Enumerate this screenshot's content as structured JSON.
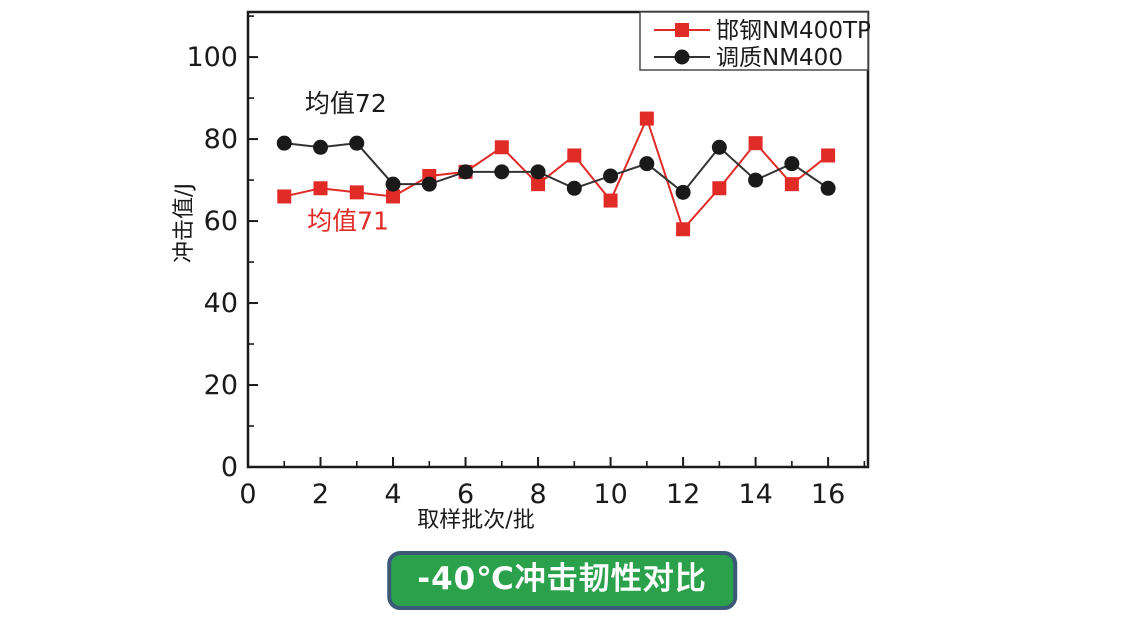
{
  "banner": {
    "label": "-40℃冲击韧性对比",
    "bg_color": "#2ba14b",
    "border_color": "#3b5a78",
    "text_color": "#ffffff"
  },
  "chart_data": {
    "type": "line",
    "title": "",
    "xlabel": "取样批次/批",
    "ylabel": "冲击值/J",
    "x": [
      1,
      2,
      3,
      4,
      5,
      6,
      7,
      8,
      9,
      10,
      11,
      12,
      13,
      14,
      15,
      16
    ],
    "series": [
      {
        "name": "邯钢NM400TP",
        "marker": "square",
        "color": "#e02b27",
        "values": [
          66,
          68,
          67,
          66,
          71,
          72,
          78,
          69,
          76,
          65,
          85,
          58,
          68,
          79,
          69,
          76
        ],
        "mean": 71
      },
      {
        "name": "调质NM400",
        "marker": "circle",
        "color": "#1a1a1a",
        "line_color": "#333333",
        "values": [
          79,
          78,
          79,
          69,
          69,
          72,
          72,
          72,
          68,
          71,
          74,
          67,
          78,
          70,
          74,
          68
        ],
        "mean": 72
      }
    ],
    "annotations": [
      {
        "text": "均值72",
        "color": "#1a1a1a",
        "x": 1.57,
        "y": 86.6
      },
      {
        "text": "均值71",
        "color": "#e02b27",
        "x": 1.63,
        "y": 58.0
      }
    ],
    "xlim": [
      0,
      17.1
    ],
    "ylim": [
      0,
      111
    ],
    "x_major_ticks": [
      0,
      2,
      4,
      6,
      8,
      10,
      12,
      14,
      16
    ],
    "x_minor_ticks": [
      1,
      3,
      5,
      7,
      9,
      11,
      13,
      15,
      17
    ],
    "y_major_ticks": [
      0,
      20,
      40,
      60,
      80,
      100
    ],
    "y_minor_ticks": [
      10,
      30,
      50,
      70,
      90,
      110
    ],
    "grid": false,
    "legend_position": "top-right",
    "frame_color": "#1a1a1a"
  }
}
